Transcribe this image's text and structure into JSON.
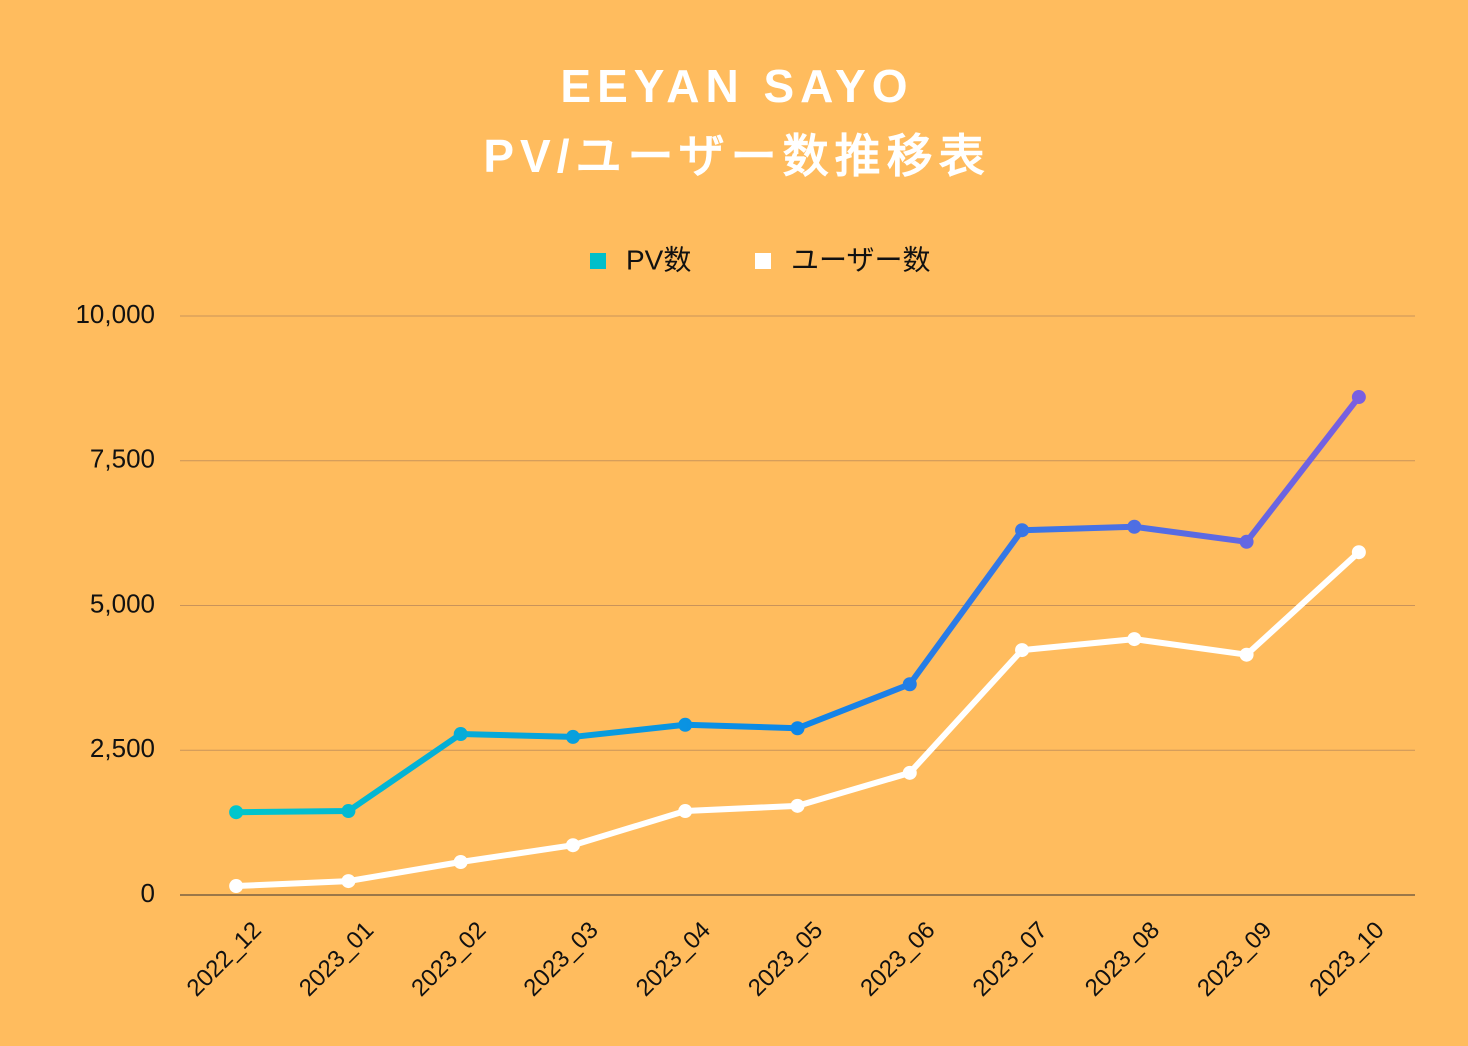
{
  "chart_data": {
    "type": "line",
    "title": "EEYAN SAYO",
    "subtitle": "PV/ユーザー数推移表",
    "categories": [
      "2022_12",
      "2023_01",
      "2023_02",
      "2023_03",
      "2023_04",
      "2023_05",
      "2023_06",
      "2023_07",
      "2023_08",
      "2023_09",
      "2023_10"
    ],
    "series": [
      {
        "name": "PV数",
        "color": "#00bfca",
        "gradient": [
          "#00c6cc",
          "#0d86e8",
          "#7a5fe0"
        ],
        "values": [
          1430,
          1450,
          2780,
          2730,
          2940,
          2880,
          3640,
          6300,
          6360,
          6100,
          8600
        ]
      },
      {
        "name": "ユーザー数",
        "color": "#ffffff",
        "values": [
          155,
          240,
          570,
          860,
          1450,
          1540,
          2110,
          4230,
          4420,
          4150,
          5920
        ]
      }
    ],
    "ylim": [
      0,
      10000
    ],
    "yticks": [
      0,
      {
        "value": 2500,
        "label": "2,500"
      },
      {
        "value": 5000,
        "label": "5,000"
      },
      {
        "value": 7500,
        "label": "7,500"
      },
      {
        "value": 10000,
        "label": "10,000"
      }
    ],
    "grid": true,
    "legend": "top"
  }
}
